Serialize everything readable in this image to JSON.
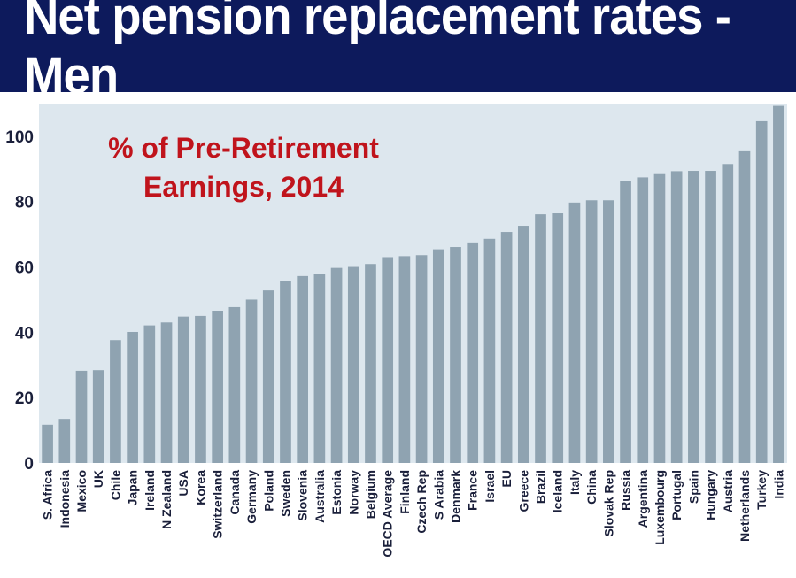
{
  "header": {
    "title": "Net pension replacement rates - Men"
  },
  "colors": {
    "banner": "#0d1a5c",
    "plot_bg": "#dde7ee",
    "bar": "#8fa3b1",
    "subtitle": "#c0141c",
    "text": "#1a1f3a"
  },
  "chart_data": {
    "type": "bar",
    "title": "Net pension replacement rates - Men",
    "subtitle_lines": [
      "% of Pre-Retirement",
      "Earnings, 2014"
    ],
    "xlabel": "",
    "ylabel": "",
    "ylim": [
      0,
      110
    ],
    "yticks": [
      0,
      20,
      40,
      60,
      80,
      100
    ],
    "grid": false,
    "categories": [
      "S. Africa",
      "Indonesia",
      "Mexico",
      "UK",
      "Chile",
      "Japan",
      "Ireland",
      "N Zealand",
      "USA",
      "Korea",
      "Switzerland",
      "Canada",
      "Germany",
      "Poland",
      "Sweden",
      "Slovenia",
      "Australia",
      "Estonia",
      "Norway",
      "Belgium",
      "OECD Average",
      "Finland",
      "Czech Rep",
      "S Arabia",
      "Denmark",
      "France",
      "Israel",
      "EU",
      "Greece",
      "Brazil",
      "Iceland",
      "Italy",
      "China",
      "Slovak Rep",
      "Russia",
      "Argentina",
      "Luxembourg",
      "Portugal",
      "Spain",
      "Hungary",
      "Austria",
      "Netherlands",
      "Turkey",
      "India"
    ],
    "values": [
      11.7,
      13.5,
      28.2,
      28.4,
      37.6,
      40.1,
      42.1,
      43.0,
      44.8,
      45.0,
      46.6,
      47.7,
      50.0,
      52.8,
      55.6,
      57.2,
      57.8,
      59.7,
      60.0,
      60.9,
      63.0,
      63.3,
      63.6,
      65.4,
      66.1,
      67.5,
      68.6,
      70.7,
      72.6,
      76.1,
      76.4,
      79.7,
      80.4,
      80.4,
      86.2,
      87.4,
      88.4,
      89.3,
      89.4,
      89.4,
      91.5,
      95.4,
      104.6,
      109.3
    ]
  }
}
